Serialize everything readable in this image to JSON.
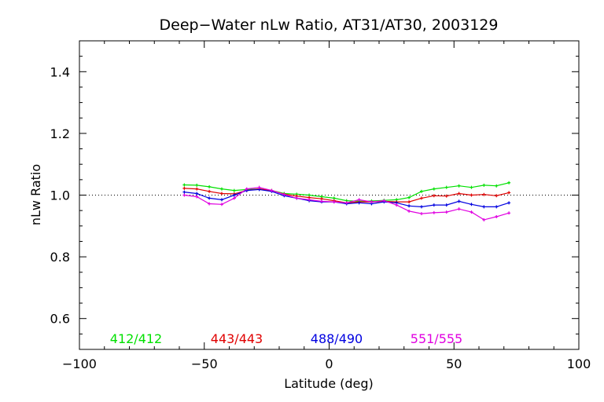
{
  "chart_data": {
    "type": "line",
    "title": "Deep−Water nLw Ratio, AT31/AT30, 2003129",
    "xlabel": "Latitude (deg)",
    "ylabel": "nLw Ratio",
    "xlim": [
      -100,
      100
    ],
    "ylim": [
      0.5,
      1.5
    ],
    "xticks": [
      -100,
      -50,
      0,
      50,
      100
    ],
    "xtick_labels": [
      "−100",
      "−50",
      "0",
      "50",
      "100"
    ],
    "yticks": [
      0.6,
      0.8,
      1.0,
      1.2,
      1.4
    ],
    "ytick_labels": [
      "0.6",
      "0.8",
      "1.0",
      "1.2",
      "1.4"
    ],
    "reference_line": 1.0,
    "legend_placement": "bottom, inside plot",
    "series": [
      {
        "name": "412/412",
        "color": "#00e000",
        "x": [
          -58,
          -53,
          -48,
          -43,
          -38,
          -33,
          -28,
          -23,
          -18,
          -13,
          -8,
          -3,
          2,
          7,
          12,
          17,
          22,
          27,
          32,
          37,
          42,
          47,
          52,
          57,
          62,
          67,
          72
        ],
        "y": [
          1.033,
          1.032,
          1.027,
          1.02,
          1.015,
          1.018,
          1.02,
          1.015,
          1.005,
          1.003,
          1.0,
          0.995,
          0.99,
          0.982,
          0.98,
          0.981,
          0.983,
          0.985,
          0.992,
          1.012,
          1.02,
          1.025,
          1.03,
          1.025,
          1.032,
          1.03,
          1.04
        ]
      },
      {
        "name": "443/443",
        "color": "#e00000",
        "x": [
          -58,
          -53,
          -48,
          -43,
          -38,
          -33,
          -28,
          -23,
          -18,
          -13,
          -8,
          -3,
          2,
          7,
          12,
          17,
          22,
          27,
          32,
          37,
          42,
          47,
          52,
          57,
          62,
          67,
          72
        ],
        "y": [
          1.022,
          1.02,
          1.012,
          1.005,
          1.004,
          1.015,
          1.02,
          1.015,
          1.003,
          0.997,
          0.992,
          0.988,
          0.982,
          0.975,
          0.978,
          0.978,
          0.98,
          0.978,
          0.978,
          0.99,
          0.998,
          0.997,
          1.005,
          1.0,
          1.002,
          0.998,
          1.008
        ]
      },
      {
        "name": "488/490",
        "color": "#0000e0",
        "x": [
          -58,
          -53,
          -48,
          -43,
          -38,
          -33,
          -28,
          -23,
          -18,
          -13,
          -8,
          -3,
          2,
          7,
          12,
          17,
          22,
          27,
          32,
          37,
          42,
          47,
          52,
          57,
          62,
          67,
          72
        ],
        "y": [
          1.01,
          1.005,
          0.99,
          0.985,
          1.0,
          1.015,
          1.018,
          1.012,
          0.998,
          0.99,
          0.982,
          0.978,
          0.978,
          0.972,
          0.975,
          0.972,
          0.978,
          0.975,
          0.965,
          0.962,
          0.968,
          0.968,
          0.98,
          0.97,
          0.962,
          0.962,
          0.975
        ]
      },
      {
        "name": "551/555",
        "color": "#e000e0",
        "x": [
          -58,
          -53,
          -48,
          -43,
          -38,
          -33,
          -28,
          -23,
          -18,
          -13,
          -8,
          -3,
          2,
          7,
          12,
          17,
          22,
          27,
          32,
          37,
          42,
          47,
          52,
          57,
          62,
          67,
          72
        ],
        "y": [
          1.0,
          0.995,
          0.972,
          0.97,
          0.99,
          1.02,
          1.025,
          1.015,
          1.002,
          0.99,
          0.985,
          0.98,
          0.978,
          0.975,
          0.985,
          0.978,
          0.982,
          0.968,
          0.948,
          0.94,
          0.943,
          0.945,
          0.955,
          0.945,
          0.92,
          0.93,
          0.942
        ]
      }
    ]
  }
}
